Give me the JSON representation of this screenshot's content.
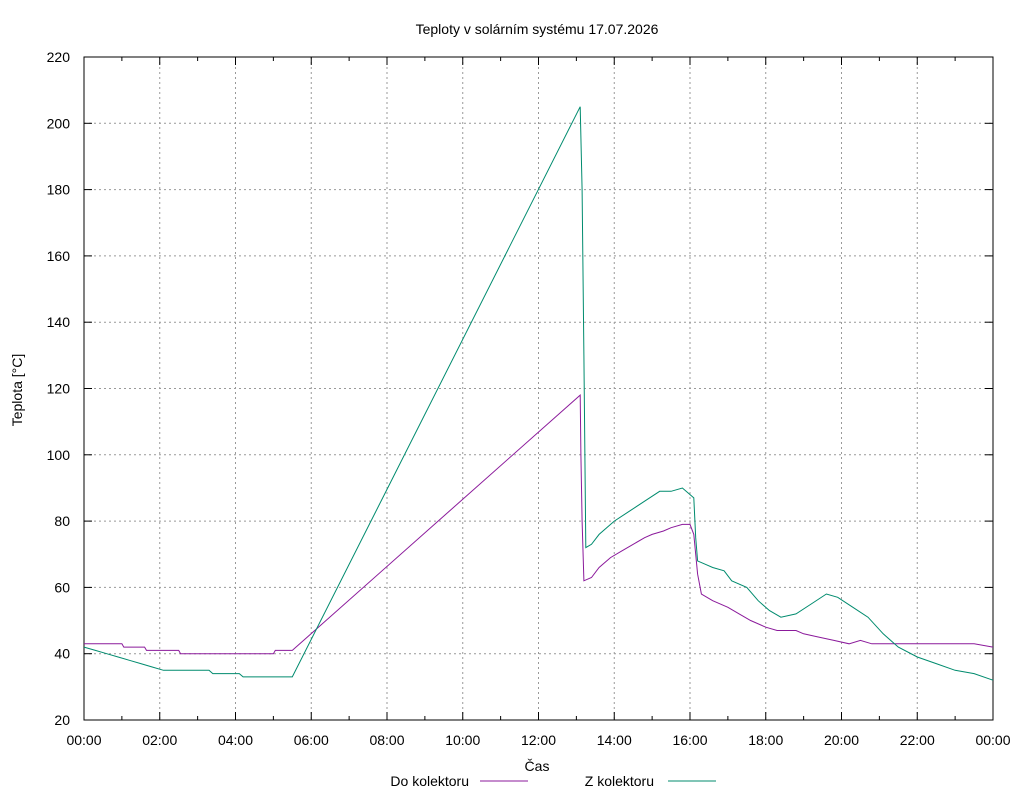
{
  "chart_data": {
    "type": "line",
    "title": "Teploty v solárním systému 17.07.2026",
    "xlabel": "Čas",
    "ylabel": "Teplota [°C]",
    "x_unit": "hours",
    "xlim": [
      0,
      24
    ],
    "ylim": [
      20,
      220
    ],
    "y_ticks": [
      20,
      40,
      60,
      80,
      100,
      120,
      140,
      160,
      180,
      200,
      220
    ],
    "x_ticks": [
      0,
      2,
      4,
      6,
      8,
      10,
      12,
      14,
      16,
      18,
      20,
      22,
      24
    ],
    "x_tick_labels": [
      "00:00",
      "02:00",
      "04:00",
      "06:00",
      "08:00",
      "10:00",
      "12:00",
      "14:00",
      "16:00",
      "18:00",
      "20:00",
      "22:00",
      "00:00"
    ],
    "grid": true,
    "legend_position": "bottom",
    "series": [
      {
        "name": "Do kolektoru",
        "color": "#8b1a9b",
        "points": [
          [
            0,
            43
          ],
          [
            1,
            43
          ],
          [
            1.05,
            42
          ],
          [
            1.6,
            42
          ],
          [
            1.65,
            41
          ],
          [
            2.5,
            41
          ],
          [
            2.55,
            40
          ],
          [
            5.0,
            40
          ],
          [
            5.05,
            41
          ],
          [
            5.5,
            41
          ],
          [
            13.1,
            118
          ],
          [
            13.12,
            100
          ],
          [
            13.15,
            80
          ],
          [
            13.2,
            62
          ],
          [
            13.4,
            63
          ],
          [
            13.6,
            66
          ],
          [
            13.9,
            69
          ],
          [
            14.2,
            71
          ],
          [
            14.5,
            73
          ],
          [
            14.8,
            75
          ],
          [
            15.0,
            76
          ],
          [
            15.3,
            77
          ],
          [
            15.5,
            78
          ],
          [
            15.8,
            79
          ],
          [
            16.0,
            79
          ],
          [
            16.1,
            76
          ],
          [
            16.2,
            64
          ],
          [
            16.3,
            58
          ],
          [
            16.6,
            56
          ],
          [
            17.0,
            54
          ],
          [
            17.3,
            52
          ],
          [
            17.6,
            50
          ],
          [
            18.0,
            48
          ],
          [
            18.3,
            47
          ],
          [
            18.8,
            47
          ],
          [
            19.0,
            46
          ],
          [
            19.4,
            45
          ],
          [
            19.8,
            44
          ],
          [
            20.2,
            43
          ],
          [
            20.5,
            44
          ],
          [
            20.8,
            43
          ],
          [
            22.0,
            43
          ],
          [
            23.5,
            43
          ],
          [
            24,
            42
          ]
        ]
      },
      {
        "name": "Z kolektoru",
        "color": "#008b6e",
        "points": [
          [
            0,
            42
          ],
          [
            0.3,
            41
          ],
          [
            0.6,
            40
          ],
          [
            0.9,
            39
          ],
          [
            1.2,
            38
          ],
          [
            1.5,
            37
          ],
          [
            1.8,
            36
          ],
          [
            2.1,
            35
          ],
          [
            3.3,
            35
          ],
          [
            3.4,
            34
          ],
          [
            4.1,
            34
          ],
          [
            4.2,
            33
          ],
          [
            5.5,
            33
          ],
          [
            13.1,
            205
          ],
          [
            13.15,
            180
          ],
          [
            13.2,
            130
          ],
          [
            13.25,
            72
          ],
          [
            13.4,
            73
          ],
          [
            13.6,
            76
          ],
          [
            14.0,
            80
          ],
          [
            14.4,
            83
          ],
          [
            14.8,
            86
          ],
          [
            15.2,
            89
          ],
          [
            15.5,
            89
          ],
          [
            15.8,
            90
          ],
          [
            16.1,
            87
          ],
          [
            16.15,
            75
          ],
          [
            16.2,
            68
          ],
          [
            16.4,
            67
          ],
          [
            16.6,
            66
          ],
          [
            16.9,
            65
          ],
          [
            17.1,
            62
          ],
          [
            17.5,
            60
          ],
          [
            17.8,
            56
          ],
          [
            18.1,
            53
          ],
          [
            18.4,
            51
          ],
          [
            18.8,
            52
          ],
          [
            19.2,
            55
          ],
          [
            19.6,
            58
          ],
          [
            19.9,
            57
          ],
          [
            20.3,
            54
          ],
          [
            20.7,
            51
          ],
          [
            21.1,
            46
          ],
          [
            21.5,
            42
          ],
          [
            22.0,
            39
          ],
          [
            22.5,
            37
          ],
          [
            23.0,
            35
          ],
          [
            23.5,
            34
          ],
          [
            24,
            32
          ]
        ]
      }
    ]
  }
}
